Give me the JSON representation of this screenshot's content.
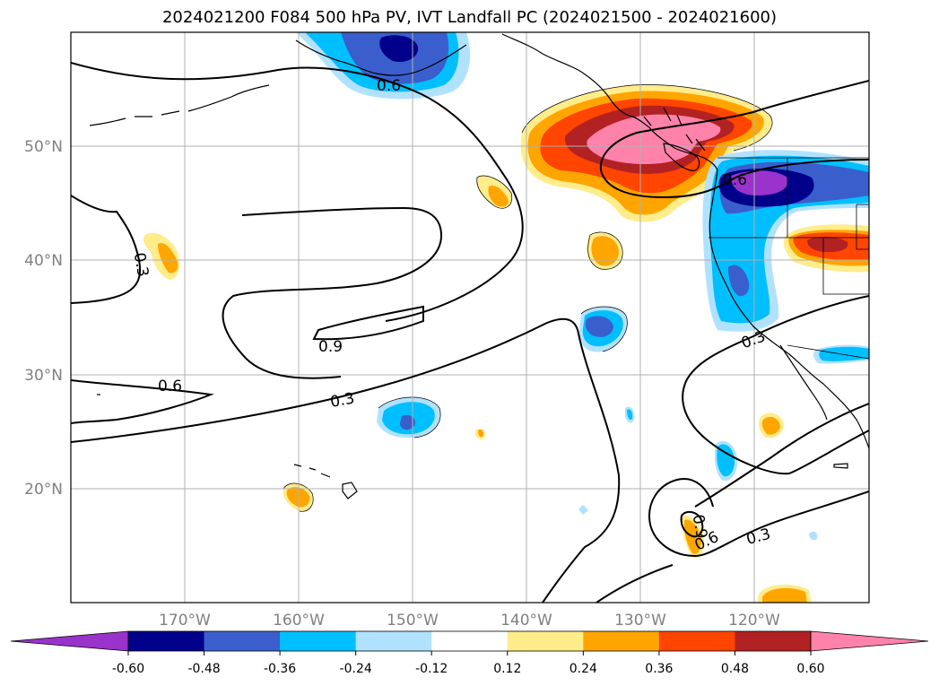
{
  "title": "2024021200 F084 500 hPa PV, IVT Landfall PC (2024021500 - 2024021600)",
  "map": {
    "lon_labels": [
      "170°W",
      "160°W",
      "150°W",
      "140°W",
      "130°W",
      "120°W"
    ],
    "lat_labels": [
      "50°N",
      "40°N",
      "30°N",
      "20°N"
    ],
    "contour_labels": [
      "0.6",
      "0.3",
      "0.9",
      "0.6",
      "0.3",
      "0.6",
      "0.3",
      "0.9",
      "0.6",
      "0.3"
    ]
  },
  "colorbar": {
    "ticks": [
      "-0.60",
      "-0.48",
      "-0.36",
      "-0.24",
      "-0.12",
      "0.12",
      "0.24",
      "0.36",
      "0.48",
      "0.60"
    ],
    "colors": [
      "#9933cc",
      "#00008b",
      "#3a5fcd",
      "#00bfff",
      "#b0e2ff",
      "#ffffff",
      "#ffec8b",
      "#ffa500",
      "#ff4500",
      "#b22222",
      "#ff82ab"
    ]
  }
}
